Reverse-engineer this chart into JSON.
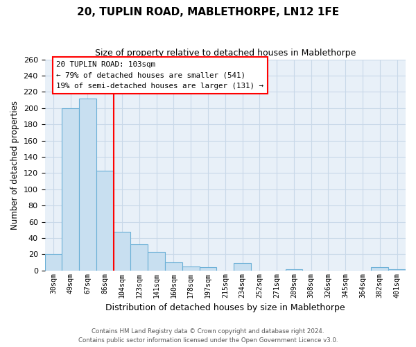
{
  "title": "20, TUPLIN ROAD, MABLETHORPE, LN12 1FE",
  "subtitle": "Size of property relative to detached houses in Mablethorpe",
  "xlabel": "Distribution of detached houses by size in Mablethorpe",
  "ylabel": "Number of detached properties",
  "bin_labels": [
    "30sqm",
    "49sqm",
    "67sqm",
    "86sqm",
    "104sqm",
    "123sqm",
    "141sqm",
    "160sqm",
    "178sqm",
    "197sqm",
    "215sqm",
    "234sqm",
    "252sqm",
    "271sqm",
    "289sqm",
    "308sqm",
    "326sqm",
    "345sqm",
    "364sqm",
    "382sqm",
    "401sqm"
  ],
  "bar_heights": [
    20,
    200,
    212,
    123,
    48,
    32,
    23,
    10,
    5,
    4,
    0,
    9,
    0,
    0,
    2,
    0,
    0,
    0,
    0,
    4,
    2
  ],
  "bar_color": "#c8dff0",
  "bar_edge_color": "#6aafd6",
  "reference_line_label": "20 TUPLIN ROAD: 103sqm",
  "annotation_line1": "← 79% of detached houses are smaller (541)",
  "annotation_line2": "19% of semi-detached houses are larger (131) →",
  "annotation_box_color": "white",
  "annotation_box_edge_color": "red",
  "vline_color": "red",
  "vline_bin_index": 4,
  "ylim": [
    0,
    260
  ],
  "yticks": [
    0,
    20,
    40,
    60,
    80,
    100,
    120,
    140,
    160,
    180,
    200,
    220,
    240,
    260
  ],
  "footer_line1": "Contains HM Land Registry data © Crown copyright and database right 2024.",
  "footer_line2": "Contains public sector information licensed under the Open Government Licence v3.0.",
  "bg_color": "#e8f0f8",
  "grid_color": "#c8d8e8"
}
